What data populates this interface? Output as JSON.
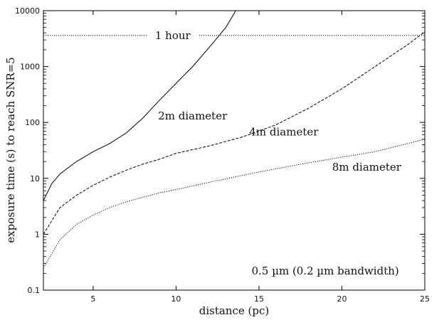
{
  "chart_data": {
    "type": "line",
    "title": "",
    "xlabel": "distance (pc)",
    "ylabel": "exposure time (s) to reach SNR=5",
    "xlim": [
      2,
      25
    ],
    "ylim": [
      0.1,
      10000
    ],
    "yscale": "log",
    "grid": false,
    "x_ticks": [
      5,
      10,
      15,
      20,
      25
    ],
    "y_ticks": [
      {
        "value": 0.1,
        "label": "0.1"
      },
      {
        "value": 1,
        "label": "1"
      },
      {
        "value": 10,
        "label": "10"
      },
      {
        "value": 100,
        "label": "100"
      },
      {
        "value": 1000,
        "label": "1000"
      },
      {
        "value": 10000,
        "label": "10000"
      }
    ],
    "series": [
      {
        "name": "2m diameter",
        "style": "solid",
        "x": [
          2,
          2.5,
          3,
          4,
          5,
          6,
          7,
          8,
          9,
          10,
          11,
          12,
          13,
          13.6
        ],
        "y": [
          4,
          8,
          12,
          20,
          30,
          42,
          65,
          120,
          250,
          500,
          1000,
          2200,
          5000,
          10000
        ]
      },
      {
        "name": "4m diameter",
        "style": "dashed",
        "x": [
          2,
          3,
          4,
          5,
          6,
          7,
          8,
          9,
          10,
          12,
          14,
          16,
          18,
          20,
          22,
          24,
          25
        ],
        "y": [
          1,
          3,
          5,
          7.5,
          10.5,
          14,
          18,
          22,
          28,
          38,
          55,
          90,
          180,
          400,
          1000,
          2500,
          4200
        ]
      },
      {
        "name": "8m diameter",
        "style": "dotted",
        "x": [
          2,
          3,
          4,
          5,
          6,
          7,
          8,
          9,
          10,
          12,
          15,
          18,
          20,
          22,
          25
        ],
        "y": [
          0.25,
          0.8,
          1.5,
          2.2,
          3,
          3.8,
          4.6,
          5.5,
          6.3,
          8.5,
          13,
          19,
          24,
          30,
          50
        ]
      },
      {
        "name": "1 hour",
        "style": "dotted",
        "x": [
          2,
          25
        ],
        "y": [
          3600,
          3600
        ]
      }
    ],
    "annotations": [
      {
        "text": "1 hour",
        "x": 9.8,
        "y": 3600
      },
      {
        "text": "2m diameter",
        "x": 11,
        "y": 130
      },
      {
        "text": "4m diameter",
        "x": 16.5,
        "y": 68
      },
      {
        "text": "8m diameter",
        "x": 21.5,
        "y": 16
      },
      {
        "text": "0.5 µm (0.2 µm bandwidth)",
        "x": 19,
        "y": 0.22
      }
    ]
  }
}
